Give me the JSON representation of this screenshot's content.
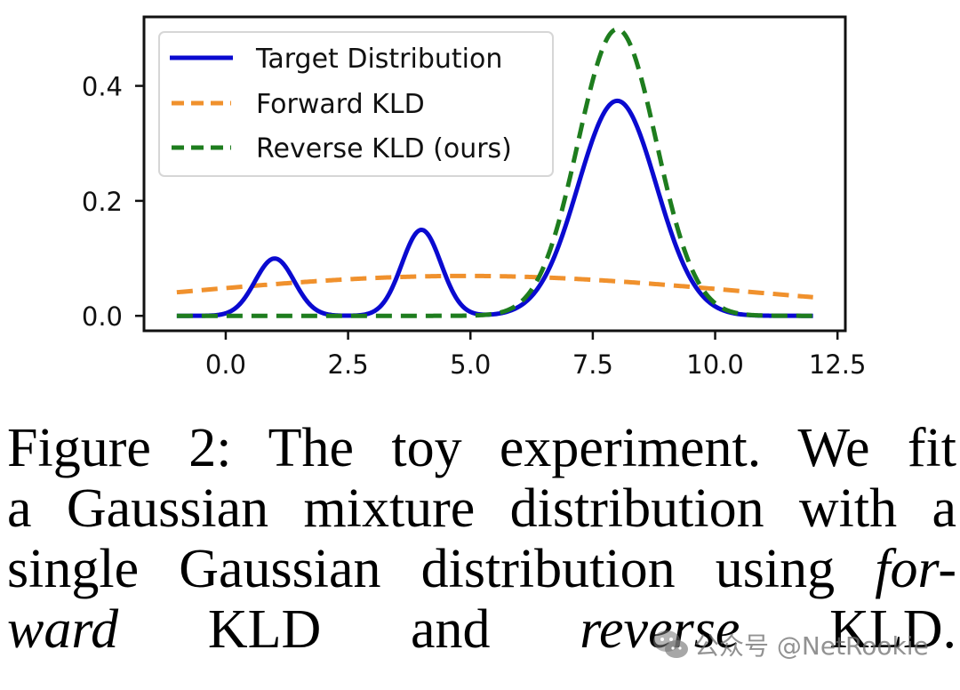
{
  "chart_data": {
    "type": "line",
    "title": "",
    "xlabel": "",
    "ylabel": "",
    "xlim": [
      -1.67,
      12.66
    ],
    "ylim": [
      -0.026,
      0.52
    ],
    "x_range_plotted": [
      -1,
      12
    ],
    "xticks": [
      0.0,
      2.5,
      5.0,
      7.5,
      10.0,
      12.5
    ],
    "xtick_labels": [
      "0.0",
      "2.5",
      "5.0",
      "7.5",
      "10.0",
      "12.5"
    ],
    "yticks": [
      0.0,
      0.2,
      0.4
    ],
    "ytick_labels": [
      "0.0",
      "0.2",
      "0.4"
    ],
    "grid": false,
    "legend_position": "top-left",
    "series": [
      {
        "name": "Target Distribution",
        "style": "solid",
        "color": "#0a0ad0",
        "kind": "gaussian-mixture",
        "components": [
          {
            "weight": 0.1,
            "mean": 1.0,
            "std": 0.4
          },
          {
            "weight": 0.15,
            "mean": 4.0,
            "std": 0.4
          },
          {
            "weight": 0.75,
            "mean": 8.0,
            "std": 0.8
          }
        ],
        "peaks": [
          {
            "x": 1.0,
            "y": 0.1
          },
          {
            "x": 4.0,
            "y": 0.15
          },
          {
            "x": 8.0,
            "y": 0.375
          }
        ]
      },
      {
        "name": "Forward KLD",
        "style": "dashed",
        "color": "#f0912d",
        "kind": "gaussian",
        "components": [
          {
            "weight": 1.0,
            "mean": 4.9,
            "std": 5.75
          }
        ],
        "peaks": [
          {
            "x": 4.9,
            "y": 0.069
          }
        ]
      },
      {
        "name": "Reverse KLD (ours)",
        "style": "dashed",
        "color": "#1e7d1e",
        "kind": "gaussian",
        "components": [
          {
            "weight": 1.0,
            "mean": 8.0,
            "std": 0.8
          }
        ],
        "peaks": [
          {
            "x": 8.0,
            "y": 0.499
          }
        ]
      }
    ]
  },
  "caption": {
    "lines": [
      [
        {
          "text": "Figure 2:  The toy experiment.  We fit",
          "italic": false
        }
      ],
      [
        {
          "text": "a Gaussian mixture distribution with a",
          "italic": false
        }
      ],
      [
        {
          "text": "single Gaussian distribution using ",
          "italic": false
        },
        {
          "text": "for-",
          "italic": true
        }
      ],
      [
        {
          "text": "ward",
          "italic": true
        },
        {
          "text": " KLD and ",
          "italic": false
        },
        {
          "text": "reverse",
          "italic": true
        },
        {
          "text": " KLD.",
          "italic": false
        }
      ]
    ]
  },
  "watermark": {
    "icon": "wechat-icon",
    "text": "公众号 @NetRookie"
  }
}
